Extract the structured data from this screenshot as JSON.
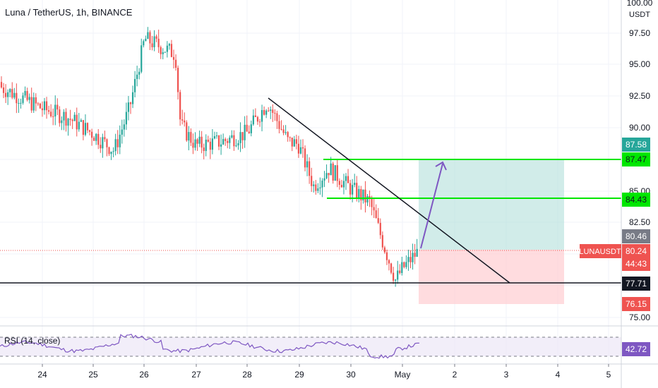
{
  "header": {
    "title": "Luna / TetherUS, 1h, BINANCE"
  },
  "price_axis": {
    "ticks": [
      "100.00",
      "97.50",
      "95.00",
      "92.50",
      "90.00",
      "85.00",
      "82.50",
      "75.00"
    ],
    "currency": "USDT"
  },
  "price_tags": {
    "tp_top": "87.58",
    "level_upper": "87.47",
    "level_mid": "84.43",
    "entry": "80.46",
    "symbol": "LUNAUSDT",
    "last_price": "80.24",
    "countdown": "44:43",
    "support": "77.71",
    "stop": "76.15"
  },
  "rsi": {
    "label": "RSI (14, close)",
    "value": "42.72",
    "upper": 70,
    "lower": 30
  },
  "time_axis": {
    "labels": [
      "24",
      "25",
      "26",
      "27",
      "28",
      "29",
      "30",
      "May",
      "2",
      "3",
      "4",
      "5"
    ]
  },
  "colors": {
    "up": "#26a69a",
    "down": "#ef5350",
    "green_line": "#00e600",
    "trend": "#131722",
    "arrow": "#7e57c2",
    "profit_zone": "#b2dfdb",
    "loss_zone": "#ffcdd2"
  },
  "chart_data": {
    "type": "candlestick",
    "symbol": "Luna / TetherUS",
    "timeframe": "1h",
    "exchange": "BINANCE",
    "y_range": [
      73.5,
      100.5
    ],
    "horizontal_levels": [
      87.47,
      84.43,
      77.71
    ],
    "trendline": {
      "from": {
        "date": "Apr 28",
        "price": 92.4
      },
      "to": {
        "date": "May 3",
        "price": 77.71
      }
    },
    "long_position": {
      "entry": 80.46,
      "target": 87.47,
      "stop": 76.15
    },
    "price_path": [
      {
        "date": "Apr 23",
        "price": 93.6
      },
      {
        "date": "Apr 24",
        "price": 91.5
      },
      {
        "date": "Apr 24.5",
        "price": 90.8
      },
      {
        "date": "Apr 25",
        "price": 89.5
      },
      {
        "date": "Apr 25.4",
        "price": 88.2
      },
      {
        "date": "Apr 25.7",
        "price": 91.5
      },
      {
        "date": "Apr 26",
        "price": 97.0
      },
      {
        "date": "Apr 26.4",
        "price": 96.2
      },
      {
        "date": "Apr 26.6",
        "price": 95.8
      },
      {
        "date": "Apr 26.7",
        "price": 90.2
      },
      {
        "date": "Apr 27",
        "price": 88.6
      },
      {
        "date": "Apr 27.5",
        "price": 88.9
      },
      {
        "date": "Apr 28",
        "price": 89.6
      },
      {
        "date": "Apr 28.4",
        "price": 92.0
      },
      {
        "date": "Apr 28.8",
        "price": 88.9
      },
      {
        "date": "Apr 29",
        "price": 88.7
      },
      {
        "date": "Apr 29.3",
        "price": 85.4
      },
      {
        "date": "Apr 29.6",
        "price": 86.8
      },
      {
        "date": "Apr 30",
        "price": 85.3
      },
      {
        "date": "Apr 30.4",
        "price": 84.1
      },
      {
        "date": "Apr 30.7",
        "price": 80.4
      },
      {
        "date": "Apr 30.9",
        "price": 78.0
      },
      {
        "date": "May 1",
        "price": 78.9
      },
      {
        "date": "May 1.3",
        "price": 80.24
      }
    ]
  }
}
